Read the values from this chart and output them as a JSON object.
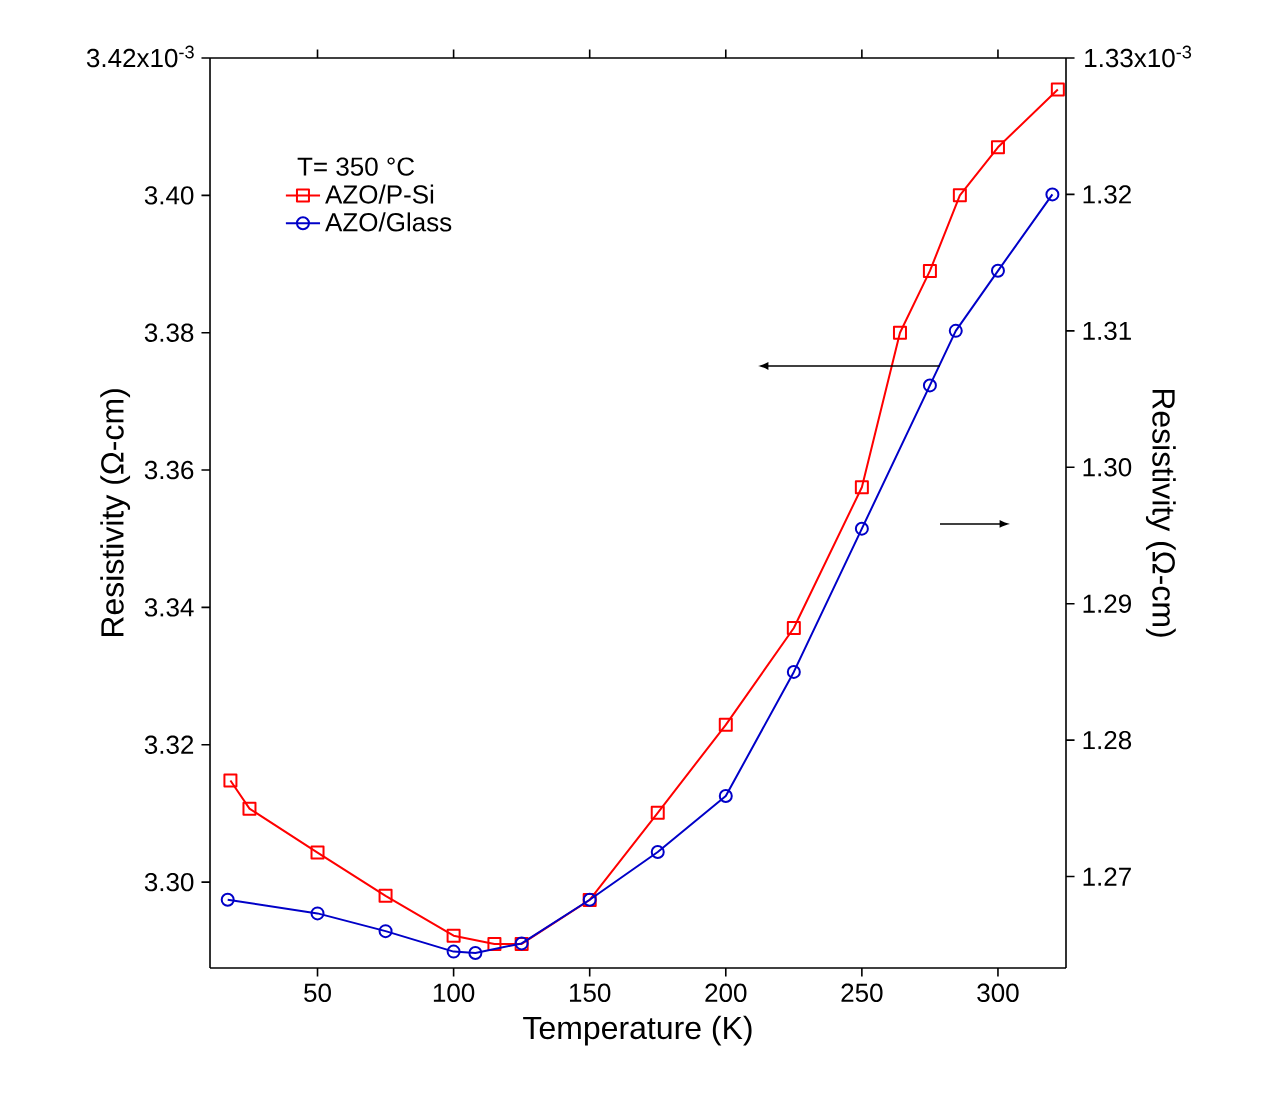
{
  "chart_data": {
    "type": "line",
    "xlabel": "Temperature (K)",
    "ylabel": "Resistivity (Ω-cm)",
    "y2label": "Resistivity (Ω-cm)",
    "legend_title": "T= 350 °C",
    "legend": "top left",
    "grid": false,
    "xlim": [
      10.5,
      325
    ],
    "xticks": [
      50,
      100,
      150,
      200,
      250,
      300
    ],
    "ylim": [
      3.2875,
      3.42
    ],
    "yticks": [
      {
        "value": 3.3,
        "label": "3.30"
      },
      3.32,
      3.34,
      3.36,
      3.38,
      {
        "value": 3.4,
        "label": "3.40"
      },
      {
        "value": 3.42,
        "label": null
      }
    ],
    "y2lim": [
      1.2633,
      1.33
    ],
    "y2ticks": [
      1.27,
      1.28,
      1.29,
      {
        "value": 1.3,
        "label": "1.30"
      },
      1.31,
      1.32,
      {
        "value": 1.33,
        "label": null
      }
    ],
    "annotations": [
      "3.42x10$^{-3}$",
      "1.33x10$^{-3}$"
    ],
    "series": [
      {
        "name": "AZO/P-Si",
        "color": "#ff0000",
        "marker": "square",
        "x": [
          18,
          25,
          50,
          75,
          100,
          115,
          125,
          150,
          175,
          200,
          225,
          250,
          264,
          275,
          286,
          300,
          322
        ],
        "values": [
          3.3148,
          3.3107,
          3.3043,
          3.298,
          3.2922,
          3.291,
          3.291,
          3.2974,
          3.3101,
          3.3229,
          3.337,
          3.3575,
          3.38,
          3.389,
          3.4,
          3.407,
          3.4154
        ]
      },
      {
        "name": "AZO/Glass",
        "color": "#0000c8",
        "marker": "circle",
        "axis": "y2",
        "x": [
          17,
          50,
          75,
          100,
          108,
          125,
          150,
          175,
          200,
          225,
          250,
          275,
          284.5,
          300,
          320
        ],
        "values": [
          1.2683,
          1.2673,
          1.266,
          1.2645,
          1.2644,
          1.2651,
          1.2683,
          1.2718,
          1.2759,
          1.285,
          1.2955,
          1.306,
          1.31,
          1.3144,
          1.32
        ]
      }
    ]
  }
}
